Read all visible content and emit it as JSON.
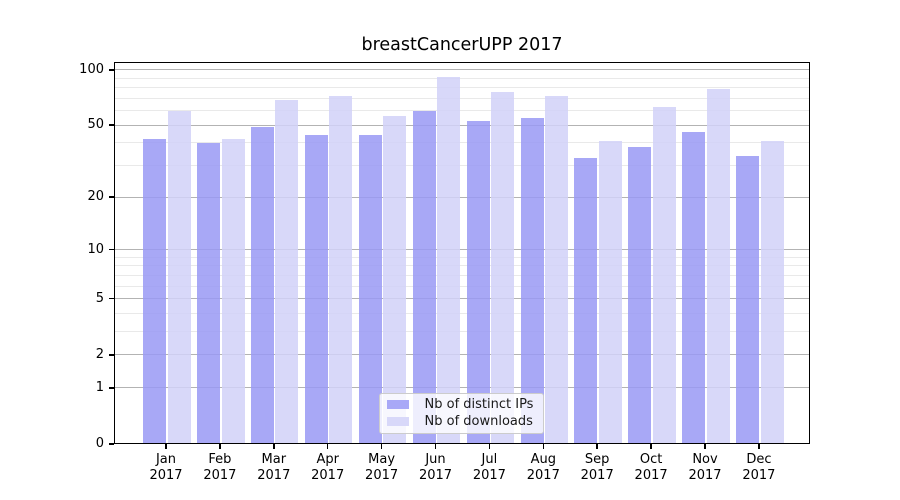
{
  "chart_data": {
    "type": "bar",
    "title": "breastCancerUPP 2017",
    "categories": [
      "Jan",
      "Feb",
      "Mar",
      "Apr",
      "May",
      "Jun",
      "Jul",
      "Aug",
      "Sep",
      "Oct",
      "Nov",
      "Dec"
    ],
    "year_label": "2017",
    "series": [
      {
        "name": "Nb of distinct IPs",
        "color": "#a8a8f7",
        "fill_rgba": "rgba(153,153,244,0.85)",
        "values": [
          42,
          40,
          49,
          44,
          44,
          60,
          53,
          55,
          33,
          38,
          46,
          34
        ]
      },
      {
        "name": "Nb of downloads",
        "color": "#d8d8f9",
        "fill_rgba": "rgba(209,209,248,0.85)",
        "values": [
          60,
          42,
          69,
          72,
          56,
          91,
          76,
          72,
          41,
          63,
          79,
          41
        ]
      }
    ],
    "y_axis": {
      "scale": "log1p",
      "ticks": [
        0,
        1,
        2,
        5,
        10,
        20,
        50,
        100
      ],
      "minor_ticks": [
        3,
        4,
        6,
        7,
        8,
        9,
        30,
        40,
        60,
        70,
        80,
        90
      ],
      "ylim": [
        0,
        111
      ]
    },
    "grid": true,
    "legend_position": "lower center",
    "colors": {
      "major_grid": "#b3b3b3",
      "minor_grid": "#e9e9e9",
      "axis": "#000000",
      "background": "#ffffff"
    }
  }
}
